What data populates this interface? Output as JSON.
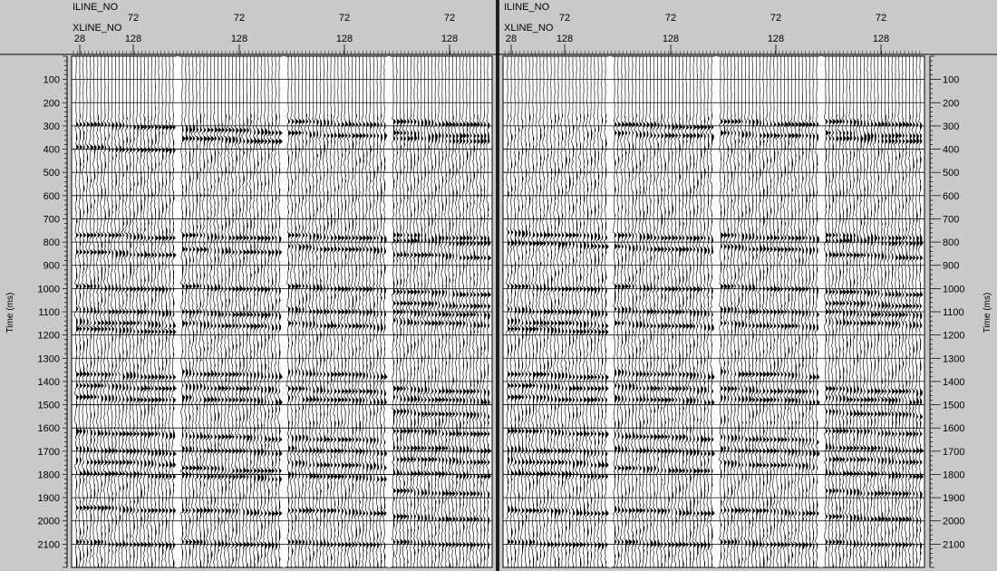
{
  "chart_data": {
    "type": "line",
    "description_type": "seismic wiggle-trace display",
    "ylabel": "Time (ms)",
    "y_ticks": [
      100,
      200,
      300,
      400,
      500,
      600,
      700,
      800,
      900,
      1000,
      1100,
      1200,
      1300,
      1400,
      1500,
      1600,
      1700,
      1800,
      1900,
      2000,
      2100
    ],
    "ylim": [
      0,
      2200
    ],
    "grid": true,
    "panels": [
      {
        "name": "",
        "header_labels": [
          "ILINE_NO",
          "XLINE_NO"
        ],
        "iline_ticks": [
          "72",
          "72",
          "72",
          "72"
        ],
        "xline_ticks": [
          "28",
          "128",
          "128",
          "128",
          "128"
        ],
        "gathers": 4,
        "traces_per_gather": 28,
        "event_times_ms": [
          [
            300,
            400,
            775,
            850,
            1000,
            1100,
            1150,
            1180,
            1375,
            1425,
            1475,
            1625,
            1700,
            1750,
            1800,
            1950,
            2100
          ],
          [
            320,
            360,
            780,
            840,
            1000,
            1110,
            1160,
            1370,
            1430,
            1480,
            1640,
            1700,
            1780,
            1810,
            1960,
            2100
          ],
          [
            290,
            340,
            780,
            830,
            1000,
            1100,
            1160,
            1370,
            1440,
            1480,
            1650,
            1700,
            1760,
            1810,
            1960,
            2100
          ],
          [
            290,
            340,
            360,
            780,
            800,
            860,
            1020,
            1070,
            1110,
            1150,
            1440,
            1480,
            1540,
            1620,
            1690,
            1740,
            1800,
            1880,
            1990,
            2100
          ]
        ]
      },
      {
        "name": "",
        "header_labels": [
          "ILINE_NO",
          "XLINE_NO"
        ],
        "iline_ticks": [
          "72",
          "72",
          "72",
          "72"
        ],
        "xline_ticks": [
          "28",
          "128",
          "128",
          "128",
          "128"
        ],
        "gathers": 4,
        "traces_per_gather": 28,
        "event_times_ms": [
          [
            770,
            810,
            1000,
            1100,
            1150,
            1180,
            1375,
            1425,
            1475,
            1620,
            1700,
            1750,
            1800,
            1960,
            2100
          ],
          [
            300,
            340,
            780,
            830,
            1000,
            1100,
            1160,
            1370,
            1430,
            1480,
            1640,
            1700,
            1780,
            1960,
            2100
          ],
          [
            290,
            340,
            780,
            830,
            1000,
            1100,
            1160,
            1370,
            1440,
            1480,
            1650,
            1700,
            1760,
            1960,
            2100
          ],
          [
            290,
            340,
            360,
            780,
            800,
            860,
            1020,
            1070,
            1110,
            1150,
            1440,
            1480,
            1540,
            1620,
            1690,
            1740,
            1800,
            1880,
            1990,
            2100
          ]
        ]
      }
    ]
  },
  "colors": {
    "background": "#c9c9c9",
    "plot_background": "#ffffff",
    "trace": "#000000",
    "grid": "#000000"
  }
}
